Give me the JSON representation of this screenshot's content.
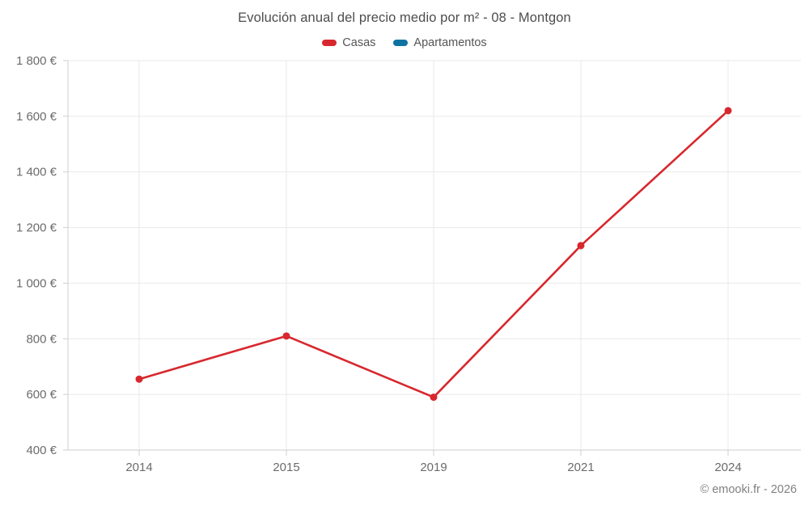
{
  "page": {
    "footer": "© emooki.fr - 2026"
  },
  "colors": {
    "background": "#ffffff",
    "grid": "#e9e9e9",
    "axis": "#cfcfcf",
    "title_text": "#4d4d4d",
    "axis_text": "#6b6b6b",
    "legend_text": "#555555",
    "footer_text": "#808080",
    "casas": "#d7282e",
    "apartamentos": "#0e72a3"
  },
  "chart_data": {
    "type": "line",
    "title": "Evolución anual del precio medio por m² - 08 - Montgon",
    "categories": [
      "2014",
      "2015",
      "2019",
      "2021",
      "2024"
    ],
    "series": [
      {
        "name": "Casas",
        "color": "#d7282e",
        "values": [
          655,
          810,
          590,
          1135,
          1620
        ]
      },
      {
        "name": "Apartamentos",
        "color": "#0e72a3",
        "values": []
      }
    ],
    "ylim": [
      400,
      1800
    ],
    "yticks": [
      {
        "value": 400,
        "label": "400 €"
      },
      {
        "value": 600,
        "label": "600 €"
      },
      {
        "value": 800,
        "label": "800 €"
      },
      {
        "value": 1000,
        "label": "1 000 €"
      },
      {
        "value": 1200,
        "label": "1 200 €"
      },
      {
        "value": 1400,
        "label": "1 400 €"
      },
      {
        "value": 1600,
        "label": "1 600 €"
      },
      {
        "value": 1800,
        "label": "1 800 €"
      }
    ],
    "xlabel": "",
    "ylabel": "",
    "grid": true,
    "legend_position": "top",
    "footer": "© emooki.fr - 2026"
  }
}
